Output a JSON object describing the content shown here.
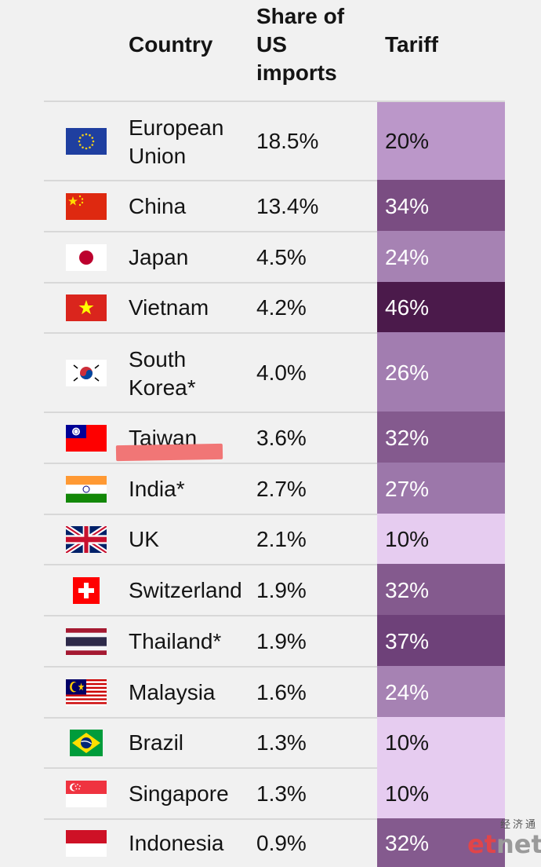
{
  "header": {
    "country": "Country",
    "share": "Share of\nUS\nimports",
    "tariff": "Tariff"
  },
  "rows": [
    {
      "country": "European\nUnion",
      "share": "18.5%",
      "tariff": "20%",
      "color": "#bb97c9",
      "flag": "eu-flag-icon"
    },
    {
      "country": "China",
      "share": "13.4%",
      "tariff": "34%",
      "color": "#7a4d82",
      "flag": "china-flag-icon"
    },
    {
      "country": "Japan",
      "share": "4.5%",
      "tariff": "24%",
      "color": "#a682b3",
      "flag": "japan-flag-icon"
    },
    {
      "country": "Vietnam",
      "share": "4.2%",
      "tariff": "46%",
      "color": "#4b1a4b",
      "flag": "vietnam-flag-icon"
    },
    {
      "country": "South\nKorea*",
      "share": "4.0%",
      "tariff": "26%",
      "color": "#a27db0",
      "flag": "south-korea-flag-icon"
    },
    {
      "country": "Taiwan",
      "share": "3.6%",
      "tariff": "32%",
      "color": "#845a8e",
      "flag": "taiwan-flag-icon"
    },
    {
      "country": "India*",
      "share": "2.7%",
      "tariff": "27%",
      "color": "#9c77aa",
      "flag": "india-flag-icon"
    },
    {
      "country": "UK",
      "share": "2.1%",
      "tariff": "10%",
      "color": "#e6ccf0",
      "flag": "uk-flag-icon"
    },
    {
      "country": "Switzerland",
      "share": "1.9%",
      "tariff": "32%",
      "color": "#845a8e",
      "flag": "switzerland-flag-icon"
    },
    {
      "country": "Thailand*",
      "share": "1.9%",
      "tariff": "37%",
      "color": "#6e4179",
      "flag": "thailand-flag-icon"
    },
    {
      "country": "Malaysia",
      "share": "1.6%",
      "tariff": "24%",
      "color": "#a682b3",
      "flag": "malaysia-flag-icon"
    },
    {
      "country": "Brazil",
      "share": "1.3%",
      "tariff": "10%",
      "color": "#e6ccf0",
      "flag": "brazil-flag-icon"
    },
    {
      "country": "Singapore",
      "share": "1.3%",
      "tariff": "10%",
      "color": "#e6ccf0",
      "flag": "singapore-flag-icon"
    },
    {
      "country": "Indonesia",
      "share": "0.9%",
      "tariff": "32%",
      "color": "#845a8e",
      "flag": "indonesia-flag-icon"
    }
  ],
  "watermark": {
    "cn": "经济通",
    "en_main": "et",
    "en_rest": "net"
  }
}
